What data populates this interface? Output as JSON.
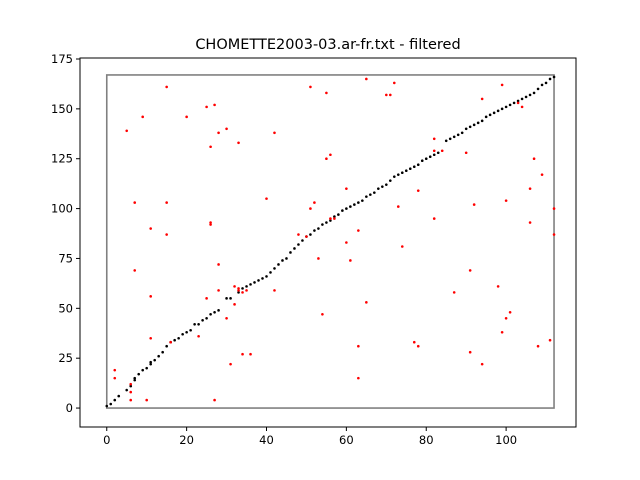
{
  "chart_data": {
    "type": "scatter",
    "title": "CHOMETTE2003-03.ar-fr.txt - filtered",
    "xlabel": "",
    "ylabel": "",
    "xlim": [
      -6.7,
      117.5
    ],
    "ylim": [
      -9.5,
      175.5
    ],
    "xticks": [
      0,
      20,
      40,
      60,
      80,
      100
    ],
    "yticks": [
      0,
      25,
      50,
      75,
      100,
      125,
      150,
      175
    ],
    "grid": false,
    "reference_box": {
      "x": [
        0,
        112
      ],
      "y": [
        0,
        167
      ],
      "color": "#808080"
    },
    "series": [
      {
        "color": "#000000",
        "points": [
          [
            0,
            1
          ],
          [
            1,
            2
          ],
          [
            2,
            4
          ],
          [
            3,
            6
          ],
          [
            5,
            9
          ],
          [
            6,
            11
          ],
          [
            7,
            14
          ],
          [
            7,
            15
          ],
          [
            8,
            17
          ],
          [
            9,
            19
          ],
          [
            10,
            20
          ],
          [
            11,
            22
          ],
          [
            11,
            23
          ],
          [
            12,
            24
          ],
          [
            13,
            26
          ],
          [
            14,
            28
          ],
          [
            15,
            31
          ],
          [
            16,
            33
          ],
          [
            17,
            34
          ],
          [
            18,
            35
          ],
          [
            19,
            37
          ],
          [
            20,
            38
          ],
          [
            21,
            39
          ],
          [
            22,
            42
          ],
          [
            23,
            42
          ],
          [
            24,
            44
          ],
          [
            25,
            45
          ],
          [
            26,
            47
          ],
          [
            27,
            48
          ],
          [
            28,
            49
          ],
          [
            30,
            55
          ],
          [
            31,
            55
          ],
          [
            33,
            58
          ],
          [
            34,
            60
          ],
          [
            35,
            61
          ],
          [
            36,
            62
          ],
          [
            37,
            63
          ],
          [
            38,
            64
          ],
          [
            39,
            65
          ],
          [
            40,
            66
          ],
          [
            41,
            68
          ],
          [
            42,
            70
          ],
          [
            43,
            72
          ],
          [
            44,
            74
          ],
          [
            45,
            75
          ],
          [
            46,
            78
          ],
          [
            47,
            80
          ],
          [
            48,
            82
          ],
          [
            49,
            84
          ],
          [
            50,
            86
          ],
          [
            51,
            87
          ],
          [
            52,
            89
          ],
          [
            53,
            90
          ],
          [
            54,
            92
          ],
          [
            55,
            93
          ],
          [
            56,
            94
          ],
          [
            57,
            96
          ],
          [
            58,
            97
          ],
          [
            59,
            99
          ],
          [
            60,
            100
          ],
          [
            61,
            101
          ],
          [
            62,
            102
          ],
          [
            63,
            103
          ],
          [
            64,
            104
          ],
          [
            65,
            106
          ],
          [
            66,
            107
          ],
          [
            67,
            108
          ],
          [
            68,
            110
          ],
          [
            69,
            111
          ],
          [
            70,
            112
          ],
          [
            71,
            114
          ],
          [
            72,
            116
          ],
          [
            73,
            117
          ],
          [
            74,
            118
          ],
          [
            75,
            119
          ],
          [
            76,
            120
          ],
          [
            77,
            121
          ],
          [
            78,
            122
          ],
          [
            79,
            124
          ],
          [
            80,
            125
          ],
          [
            81,
            126
          ],
          [
            82,
            127
          ],
          [
            83,
            128
          ],
          [
            85,
            134
          ],
          [
            86,
            135
          ],
          [
            87,
            136
          ],
          [
            88,
            137
          ],
          [
            89,
            138
          ],
          [
            90,
            140
          ],
          [
            91,
            141
          ],
          [
            92,
            142
          ],
          [
            93,
            143
          ],
          [
            94,
            144
          ],
          [
            95,
            146
          ],
          [
            96,
            147
          ],
          [
            97,
            148
          ],
          [
            98,
            149
          ],
          [
            99,
            150
          ],
          [
            100,
            151
          ],
          [
            101,
            152
          ],
          [
            102,
            153
          ],
          [
            103,
            154
          ],
          [
            104,
            155
          ],
          [
            105,
            156
          ],
          [
            106,
            157
          ],
          [
            107,
            158
          ],
          [
            108,
            160
          ],
          [
            109,
            162
          ],
          [
            110,
            163
          ],
          [
            111,
            165
          ],
          [
            112,
            166
          ]
        ]
      },
      {
        "color": "#ff0000",
        "points": [
          [
            2,
            19
          ],
          [
            2,
            15
          ],
          [
            5,
            139
          ],
          [
            6,
            12
          ],
          [
            6,
            8
          ],
          [
            6,
            4
          ],
          [
            7,
            103
          ],
          [
            7,
            69
          ],
          [
            9,
            146
          ],
          [
            10,
            4
          ],
          [
            11,
            90
          ],
          [
            11,
            56
          ],
          [
            11,
            35
          ],
          [
            15,
            161
          ],
          [
            15,
            103
          ],
          [
            15,
            87
          ],
          [
            16,
            33
          ],
          [
            20,
            146
          ],
          [
            23,
            36
          ],
          [
            25,
            151
          ],
          [
            25,
            55
          ],
          [
            26,
            131
          ],
          [
            26,
            93
          ],
          [
            26,
            92
          ],
          [
            27,
            152
          ],
          [
            27,
            4
          ],
          [
            28,
            138
          ],
          [
            28,
            72
          ],
          [
            28,
            59
          ],
          [
            30,
            140
          ],
          [
            30,
            45
          ],
          [
            31,
            22
          ],
          [
            32,
            61
          ],
          [
            32,
            52
          ],
          [
            33,
            133
          ],
          [
            33,
            60
          ],
          [
            33,
            59
          ],
          [
            34,
            58
          ],
          [
            34,
            27
          ],
          [
            35,
            59
          ],
          [
            36,
            27
          ],
          [
            40,
            105
          ],
          [
            42,
            138
          ],
          [
            42,
            59
          ],
          [
            48,
            87
          ],
          [
            50,
            86
          ],
          [
            51,
            161
          ],
          [
            51,
            100
          ],
          [
            52,
            103
          ],
          [
            53,
            75
          ],
          [
            54,
            47
          ],
          [
            55,
            158
          ],
          [
            55,
            125
          ],
          [
            56,
            127
          ],
          [
            56,
            95
          ],
          [
            57,
            95
          ],
          [
            60,
            110
          ],
          [
            60,
            83
          ],
          [
            61,
            74
          ],
          [
            63,
            89
          ],
          [
            63,
            31
          ],
          [
            63,
            15
          ],
          [
            65,
            165
          ],
          [
            65,
            53
          ],
          [
            70,
            157
          ],
          [
            71,
            157
          ],
          [
            72,
            163
          ],
          [
            73,
            101
          ],
          [
            74,
            81
          ],
          [
            77,
            33
          ],
          [
            78,
            31
          ],
          [
            78,
            109
          ],
          [
            82,
            135
          ],
          [
            82,
            129
          ],
          [
            82,
            95
          ],
          [
            84,
            129
          ],
          [
            87,
            58
          ],
          [
            90,
            128
          ],
          [
            91,
            69
          ],
          [
            91,
            28
          ],
          [
            92,
            102
          ],
          [
            94,
            155
          ],
          [
            94,
            22
          ],
          [
            98,
            61
          ],
          [
            99,
            162
          ],
          [
            99,
            38
          ],
          [
            100,
            104
          ],
          [
            100,
            45
          ],
          [
            101,
            48
          ],
          [
            103,
            153
          ],
          [
            104,
            151
          ],
          [
            106,
            110
          ],
          [
            106,
            93
          ],
          [
            107,
            125
          ],
          [
            108,
            31
          ],
          [
            109,
            117
          ],
          [
            111,
            34
          ],
          [
            112,
            100
          ],
          [
            112,
            87
          ]
        ]
      }
    ]
  }
}
